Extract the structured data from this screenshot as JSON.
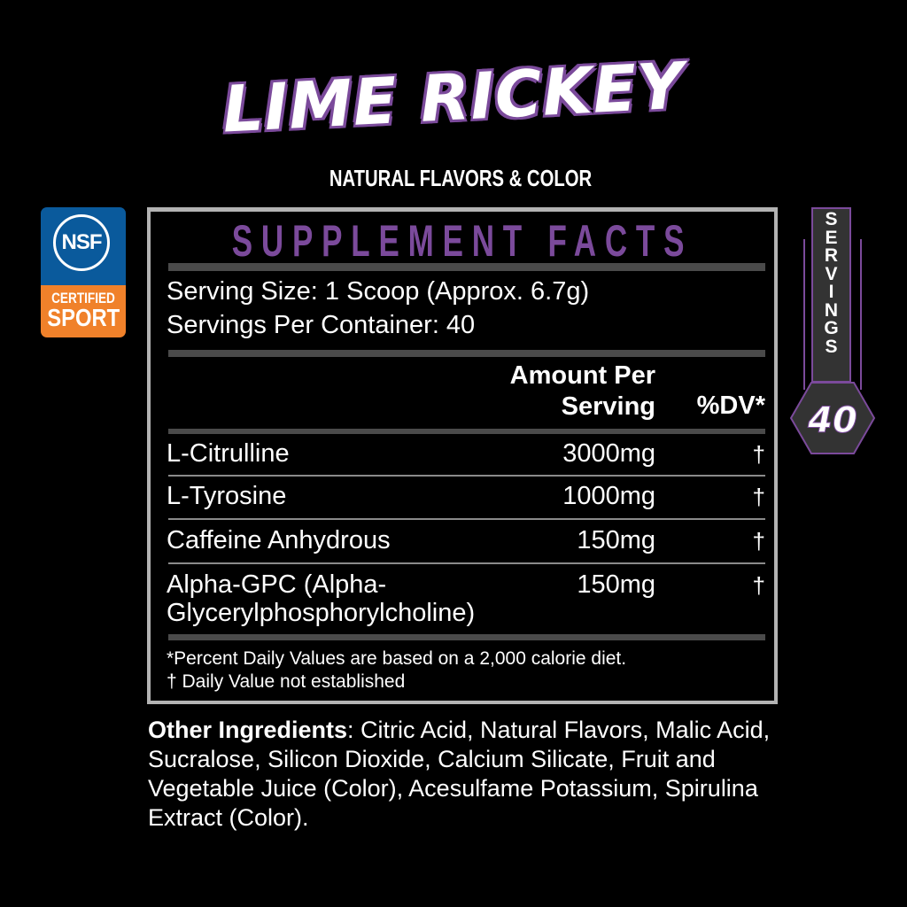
{
  "product": {
    "flavor": "LIME RICKEY",
    "subtitle": "NATURAL FLAVORS & COLOR"
  },
  "certification": {
    "logo": "NSF",
    "line1": "CERTIFIED",
    "line2": "SPORT",
    "colors": {
      "blue": "#0a5a9c",
      "orange": "#f0812a"
    }
  },
  "servings_badge": {
    "label": "SERVINGS",
    "count": "40"
  },
  "facts": {
    "title": "SUPPLEMENT FACTS",
    "serving_size": "Serving Size: 1 Scoop (Approx. 6.7g)",
    "servings_per_container": "Servings Per Container: 40",
    "header": {
      "amount_line1": "Amount Per",
      "amount_line2": "Serving",
      "dv": "%DV*"
    },
    "rows": [
      {
        "name": "L-Citrulline",
        "amount": "3000mg",
        "dv": "†"
      },
      {
        "name": "L-Tyrosine",
        "amount": "1000mg",
        "dv": "†"
      },
      {
        "name": "Caffeine Anhydrous",
        "amount": "150mg",
        "dv": "†"
      },
      {
        "name": "Alpha-GPC (Alpha-",
        "name2": "Glycerylphosphorylcholine)",
        "amount": "150mg",
        "dv": "†"
      }
    ],
    "footnote1": "*Percent Daily Values are based on a 2,000 calorie diet.",
    "footnote2": "† Daily Value not established"
  },
  "other_ingredients": {
    "label": "Other Ingredients",
    "text": ": Citric Acid, Natural Flavors, Malic Acid, Sucralose, Silicon Dioxide, Calcium Silicate, Fruit and Vegetable Juice (Color), Acesulfame Potassium, Spirulina Extract (Color)."
  },
  "colors": {
    "accent": "#7b4a9b",
    "bar": "#4a4a4a",
    "border": "#b3b3b3"
  }
}
